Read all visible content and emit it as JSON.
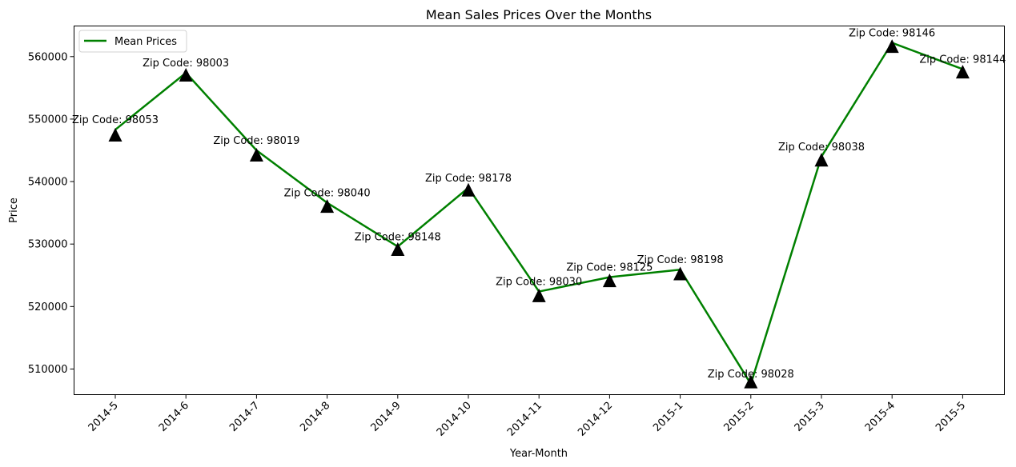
{
  "chart_data": {
    "type": "line",
    "title": "Mean Sales Prices Over the Months",
    "xlabel": "Year-Month",
    "ylabel": "Price",
    "categories": [
      "2014-5",
      "2014-6",
      "2014-7",
      "2014-8",
      "2014-9",
      "2014-10",
      "2014-11",
      "2014-12",
      "2015-1",
      "2015-2",
      "2015-3",
      "2015-4",
      "2015-5"
    ],
    "series": [
      {
        "name": "Mean Prices",
        "color": "#008000",
        "values": [
          548300,
          557400,
          545000,
          536600,
          529600,
          539000,
          522400,
          524700,
          525900,
          507600,
          544000,
          562200,
          558000
        ]
      }
    ],
    "markers": {
      "shape": "triangle-up",
      "color": "#000000",
      "values": [
        547300,
        556900,
        544100,
        535900,
        529000,
        538500,
        521600,
        524000,
        525100,
        507800,
        543300,
        561500,
        557400
      ]
    },
    "annotations": [
      "Zip Code: 98053",
      "Zip Code: 98003",
      "Zip Code: 98019",
      "Zip Code: 98040",
      "Zip Code: 98148",
      "Zip Code: 98178",
      "Zip Code: 98030",
      "Zip Code: 98125",
      "Zip Code: 98198",
      "Zip Code: 98028",
      "Zip Code: 98038",
      "Zip Code: 98146",
      "Zip Code: 98144"
    ],
    "yticks": [
      510000,
      520000,
      530000,
      540000,
      550000,
      560000
    ],
    "ylim": [
      505900,
      564900
    ],
    "grid": false,
    "legend_position": "top-left"
  }
}
